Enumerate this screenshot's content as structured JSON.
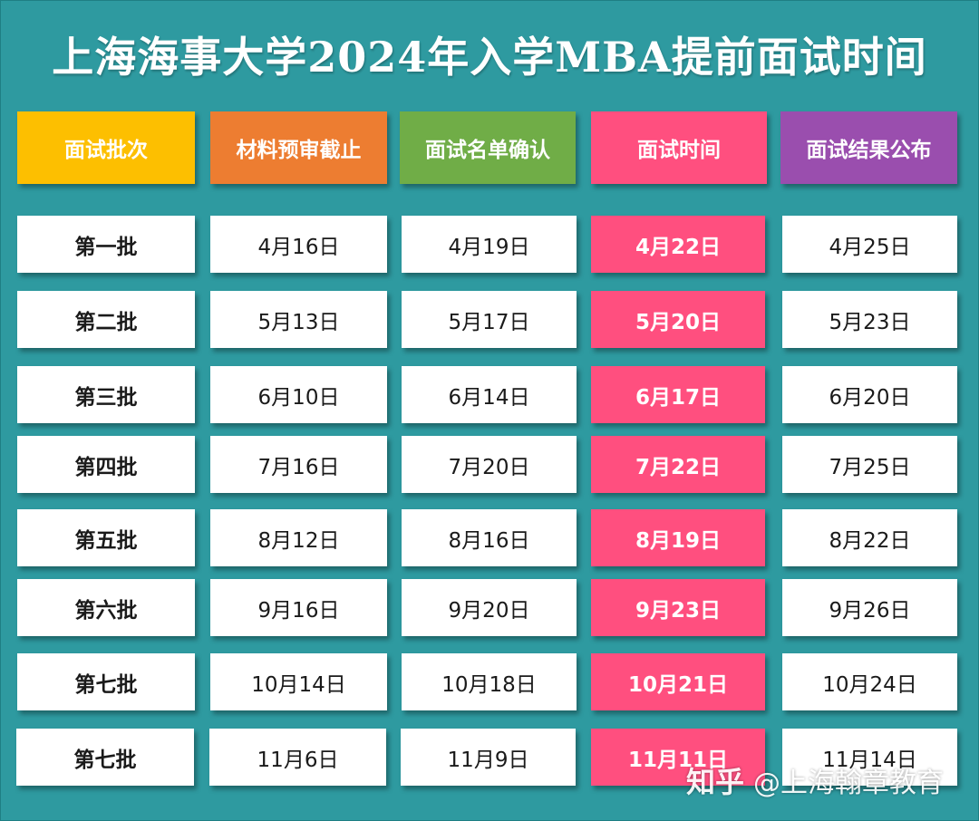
{
  "title": "上海海事大学2024年入学MBA提前面试时间",
  "colors": {
    "background": "#2e9aa0",
    "header_batch": "#fdbf00",
    "header_deadline": "#ed7d31",
    "header_confirm": "#70ad47",
    "header_interview": "#ff4f7f",
    "header_result": "#9a4eae",
    "interview_highlight": "#ff4f7f"
  },
  "headers": [
    "面试批次",
    "材料预审截止",
    "面试名单确认",
    "面试时间",
    "面试结果公布"
  ],
  "rows": [
    {
      "batch": "第一批",
      "deadline": "4月16日",
      "confirm": "4月19日",
      "interview": "4月22日",
      "result": "4月25日"
    },
    {
      "batch": "第二批",
      "deadline": "5月13日",
      "confirm": "5月17日",
      "interview": "5月20日",
      "result": "5月23日"
    },
    {
      "batch": "第三批",
      "deadline": "6月10日",
      "confirm": "6月14日",
      "interview": "6月17日",
      "result": "6月20日"
    },
    {
      "batch": "第四批",
      "deadline": "7月16日",
      "confirm": "7月20日",
      "interview": "7月22日",
      "result": "7月25日"
    },
    {
      "batch": "第五批",
      "deadline": "8月12日",
      "confirm": "8月16日",
      "interview": "8月19日",
      "result": "8月22日"
    },
    {
      "batch": "第六批",
      "deadline": "9月16日",
      "confirm": "9月20日",
      "interview": "9月23日",
      "result": "9月26日"
    },
    {
      "batch": "第七批",
      "deadline": "10月14日",
      "confirm": "10月18日",
      "interview": "10月21日",
      "result": "10月24日"
    },
    {
      "batch": "第七批",
      "deadline": "11月6日",
      "confirm": "11月9日",
      "interview": "11月11日",
      "result": "11月14日"
    }
  ],
  "watermark": {
    "logo": "知乎",
    "text": "@上海翰章教育"
  }
}
